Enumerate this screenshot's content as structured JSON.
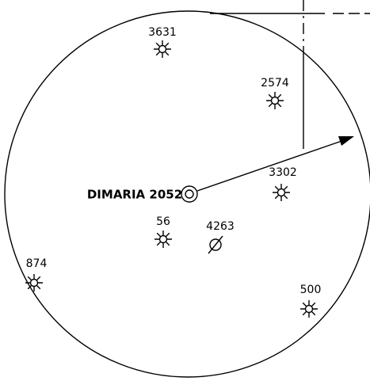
{
  "center": {
    "label": "DIMARIA 2052"
  },
  "nodes": [
    {
      "label": "3631"
    },
    {
      "label": "2574"
    },
    {
      "label": "3302"
    },
    {
      "label": "56"
    },
    {
      "label": "4263"
    },
    {
      "label": "874"
    },
    {
      "label": "500"
    }
  ]
}
